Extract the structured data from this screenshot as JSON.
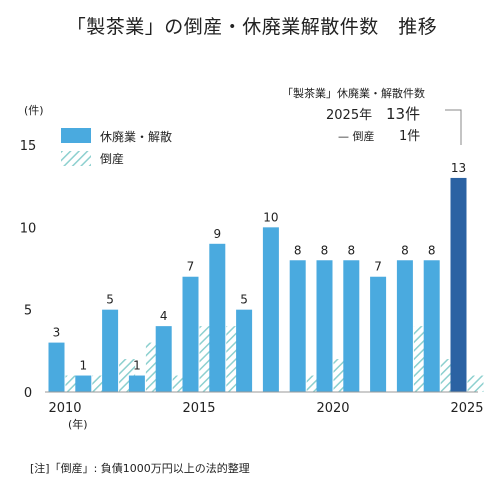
{
  "title": "「製茶業」の倒産・休廃業解散件数　推移",
  "note": "[注]「倒産」: 負債1000万円以上の法的整理",
  "colors": {
    "closures": "#4aaadf",
    "closures_last": "#2b62a3",
    "bankruptcy_fill": "#ffffff",
    "bankruptcy_hatch": "#8dd0cf"
  },
  "chart_data": {
    "type": "bar",
    "x": [
      2010,
      2011,
      2012,
      2013,
      2014,
      2015,
      2016,
      2017,
      2018,
      2019,
      2020,
      2021,
      2022,
      2023,
      2024,
      2025
    ],
    "series": [
      {
        "name": "休廃業・解散",
        "values": [
          3,
          1,
          5,
          1,
          4,
          7,
          9,
          5,
          10,
          8,
          8,
          8,
          7,
          8,
          8,
          13
        ]
      },
      {
        "name": "倒産",
        "values": [
          1,
          1,
          2,
          3,
          1,
          4,
          4,
          0,
          0,
          1,
          2,
          0,
          0,
          4,
          2,
          1
        ]
      }
    ],
    "ylabel": "(件)",
    "xunit": "(年)",
    "ylim": [
      0,
      15
    ],
    "yticks": [
      0,
      5,
      10,
      15
    ],
    "xtick_labels": [
      "2010",
      "2015",
      "2020",
      "2025"
    ],
    "legend": [
      "休廃業・解散",
      "倒産"
    ],
    "legend_position": "top-left",
    "grid": false,
    "annotation": {
      "line1": "「製茶業」休廃業・解散件数",
      "line2_year": "2025年",
      "line2_value": "13件",
      "line3_label": "— 倒産",
      "line3_value": "1件"
    }
  }
}
